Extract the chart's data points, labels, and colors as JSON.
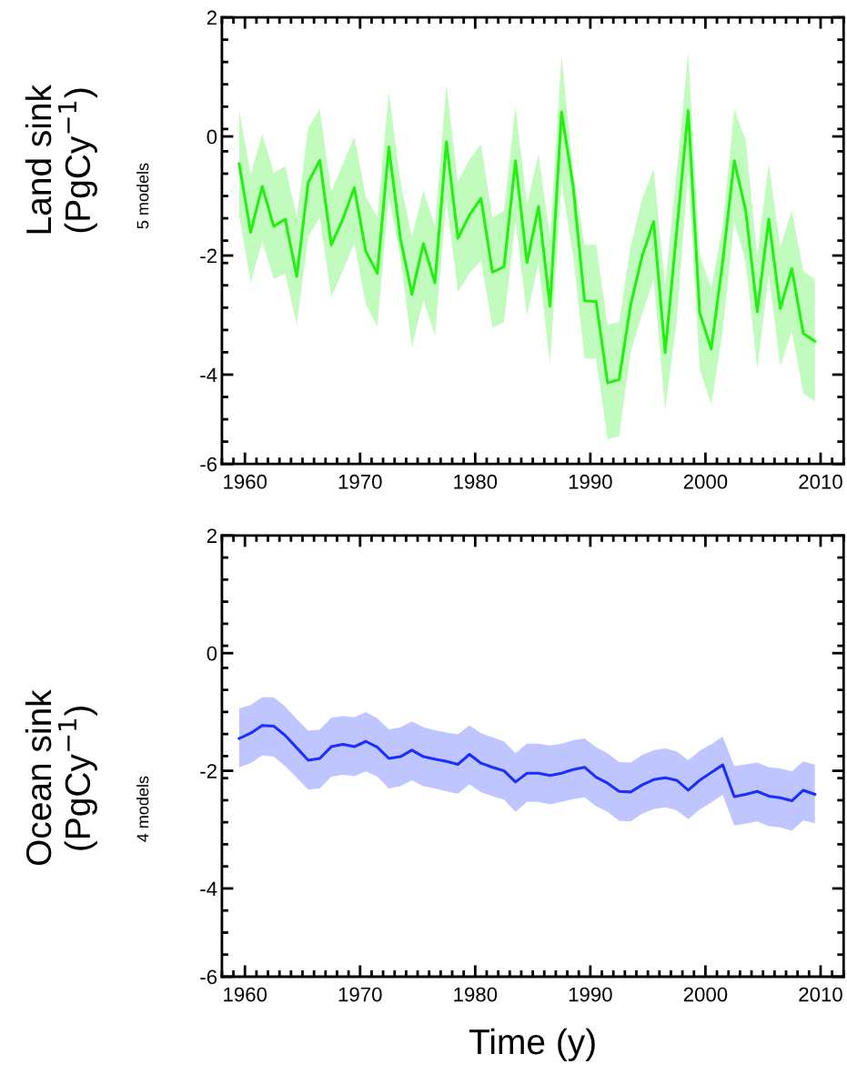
{
  "chart_data": [
    {
      "type": "line",
      "ylabel": "Land sink\n(PgCy$^{−1}$)",
      "annotations": [
        "5 models"
      ],
      "x": [
        1959.5,
        1960.5,
        1961.5,
        1962.5,
        1963.5,
        1964.5,
        1965.5,
        1966.5,
        1967.5,
        1968.5,
        1969.5,
        1970.5,
        1971.5,
        1972.5,
        1973.5,
        1974.5,
        1975.5,
        1976.5,
        1977.5,
        1978.5,
        1979.5,
        1980.5,
        1981.5,
        1982.5,
        1983.5,
        1984.5,
        1985.5,
        1986.5,
        1987.5,
        1988.5,
        1989.5,
        1990.5,
        1991.5,
        1992.5,
        1993.5,
        1994.5,
        1995.5,
        1996.5,
        1997.5,
        1998.5,
        1999.5,
        2000.5,
        2001.5,
        2002.5,
        2003.5,
        2004.5,
        2005.5,
        2006.5,
        2007.5,
        2008.5,
        2009.5
      ],
      "series": [
        {
          "color": "#22f011",
          "values": [
            -0.46,
            -1.61,
            -0.84,
            -1.51,
            -1.39,
            -2.35,
            -0.77,
            -0.4,
            -1.82,
            -1.39,
            -0.86,
            -1.93,
            -2.3,
            -0.18,
            -1.71,
            -2.65,
            -1.8,
            -2.46,
            -0.09,
            -1.71,
            -1.32,
            -1.04,
            -2.28,
            -2.19,
            -0.41,
            -2.12,
            -1.18,
            -2.85,
            0.41,
            -0.82,
            -2.76,
            -2.77,
            -4.14,
            -4.08,
            -2.83,
            -2.01,
            -1.43,
            -3.63,
            -1.6,
            0.43,
            -2.96,
            -3.57,
            -2.1,
            -0.41,
            -1.25,
            -2.94,
            -1.39,
            -2.89,
            -2.22,
            -3.31,
            -3.44
          ],
          "upper": [
            0.44,
            -0.64,
            0.04,
            -0.61,
            -0.5,
            -1.36,
            0.14,
            0.46,
            -0.93,
            -0.46,
            0,
            -1.01,
            -1.36,
            0.75,
            -0.75,
            -1.68,
            -0.91,
            -1.5,
            0.86,
            -0.75,
            -0.39,
            -0.13,
            -1.36,
            -1.25,
            0.51,
            -1.14,
            -0.29,
            -1.7,
            1.36,
            -0.6,
            -1.82,
            -1.82,
            -3.16,
            -3.12,
            -1.85,
            -1.05,
            -0.54,
            -2.5,
            -0.6,
            1.41,
            -1.97,
            -2.55,
            -1.5,
            0.46,
            -0.07,
            -2.0,
            -0.46,
            -1.86,
            -1.24,
            -2.26,
            -2.4
          ],
          "lower": [
            -1.32,
            -2.46,
            -1.76,
            -2.39,
            -2.3,
            -3.16,
            -1.68,
            -1.36,
            -2.69,
            -2.26,
            -1.79,
            -2.82,
            -3.19,
            -1.0,
            -2.04,
            -3.54,
            -2.75,
            -3.35,
            -1.07,
            -2.62,
            -2.3,
            -2.08,
            -3.21,
            -3.12,
            -1.43,
            -3.01,
            -2.12,
            -3.81,
            -0.79,
            -2.0,
            -3.73,
            -3.73,
            -5.09,
            -5.03,
            -3.63,
            -2.98,
            -2.4,
            -4.6,
            -3.1,
            -0.57,
            -3.91,
            -4.5,
            -3.27,
            -1.43,
            -2.12,
            -3.91,
            -2.33,
            -3.86,
            -3.27,
            -4.31,
            -4.45
          ]
        }
      ],
      "xlim": [
        1958,
        2012
      ],
      "xticks": [
        1960,
        1970,
        1980,
        1990,
        2000,
        2010
      ],
      "ylim": [
        -5.5,
        2
      ],
      "yticks": [
        2,
        0,
        -2,
        -4,
        {
          "value": -5.5,
          "label": "-6"
        }
      ],
      "grid": false,
      "legend": false,
      "marker": "none",
      "line_style": "solid"
    },
    {
      "type": "line",
      "ylabel": "Ocean sink\n(PgCy$^{−1}$)",
      "xlabel": "Time (y)",
      "annotations": [
        "4 models"
      ],
      "x": [
        1959.5,
        1960.5,
        1961.5,
        1962.5,
        1963.5,
        1964.5,
        1965.5,
        1966.5,
        1967.5,
        1968.5,
        1969.5,
        1970.5,
        1971.5,
        1972.5,
        1973.5,
        1974.5,
        1975.5,
        1976.5,
        1977.5,
        1978.5,
        1979.5,
        1980.5,
        1981.5,
        1982.5,
        1983.5,
        1984.5,
        1985.5,
        1986.5,
        1987.5,
        1988.5,
        1989.5,
        1990.5,
        1991.5,
        1992.5,
        1993.5,
        1994.5,
        1995.5,
        1996.5,
        1997.5,
        1998.5,
        1999.5,
        2000.5,
        2001.5,
        2002.5,
        2003.5,
        2004.5,
        2005.5,
        2006.5,
        2007.5,
        2008.5,
        2009.5
      ],
      "series": [
        {
          "color": "#1a2fff",
          "values": [
            -1.45,
            -1.36,
            -1.23,
            -1.24,
            -1.4,
            -1.61,
            -1.82,
            -1.79,
            -1.59,
            -1.55,
            -1.59,
            -1.5,
            -1.6,
            -1.79,
            -1.76,
            -1.65,
            -1.76,
            -1.8,
            -1.84,
            -1.89,
            -1.72,
            -1.87,
            -1.94,
            -2.0,
            -2.19,
            -2.04,
            -2.04,
            -2.08,
            -2.04,
            -1.98,
            -1.94,
            -2.11,
            -2.21,
            -2.35,
            -2.36,
            -2.24,
            -2.15,
            -2.12,
            -2.16,
            -2.33,
            -2.16,
            -2.03,
            -1.9,
            -2.44,
            -2.4,
            -2.35,
            -2.43,
            -2.46,
            -2.51,
            -2.33,
            -2.4
          ],
          "upper": [
            -0.94,
            -0.88,
            -0.75,
            -0.75,
            -0.91,
            -1.12,
            -1.32,
            -1.3,
            -1.1,
            -1.07,
            -1.09,
            -1.0,
            -1.11,
            -1.3,
            -1.26,
            -1.16,
            -1.26,
            -1.31,
            -1.35,
            -1.38,
            -1.23,
            -1.36,
            -1.43,
            -1.5,
            -1.7,
            -1.54,
            -1.54,
            -1.57,
            -1.54,
            -1.48,
            -1.45,
            -1.6,
            -1.7,
            -1.85,
            -1.86,
            -1.73,
            -1.65,
            -1.62,
            -1.67,
            -1.82,
            -1.66,
            -1.55,
            -1.42,
            -1.92,
            -1.89,
            -1.86,
            -1.94,
            -1.96,
            -2.01,
            -1.84,
            -1.9
          ],
          "lower": [
            -1.94,
            -1.87,
            -1.74,
            -1.76,
            -1.92,
            -2.12,
            -2.32,
            -2.3,
            -2.1,
            -2.07,
            -2.09,
            -2.01,
            -2.1,
            -2.3,
            -2.26,
            -2.16,
            -2.26,
            -2.3,
            -2.35,
            -2.39,
            -2.23,
            -2.36,
            -2.43,
            -2.49,
            -2.7,
            -2.53,
            -2.53,
            -2.57,
            -2.53,
            -2.48,
            -2.45,
            -2.6,
            -2.7,
            -2.85,
            -2.86,
            -2.73,
            -2.65,
            -2.62,
            -2.67,
            -2.82,
            -2.66,
            -2.54,
            -2.41,
            -2.93,
            -2.9,
            -2.86,
            -2.94,
            -2.96,
            -3.02,
            -2.84,
            -2.89
          ]
        }
      ],
      "xlim": [
        1958,
        2012
      ],
      "xticks": [
        1960,
        1970,
        1980,
        1990,
        2000,
        2010
      ],
      "ylim": [
        -5.5,
        2
      ],
      "yticks": [
        2,
        0,
        -2,
        -4,
        {
          "value": -5.5,
          "label": "-6"
        }
      ],
      "grid": false,
      "legend": false,
      "marker": "none",
      "line_style": "solid"
    }
  ]
}
